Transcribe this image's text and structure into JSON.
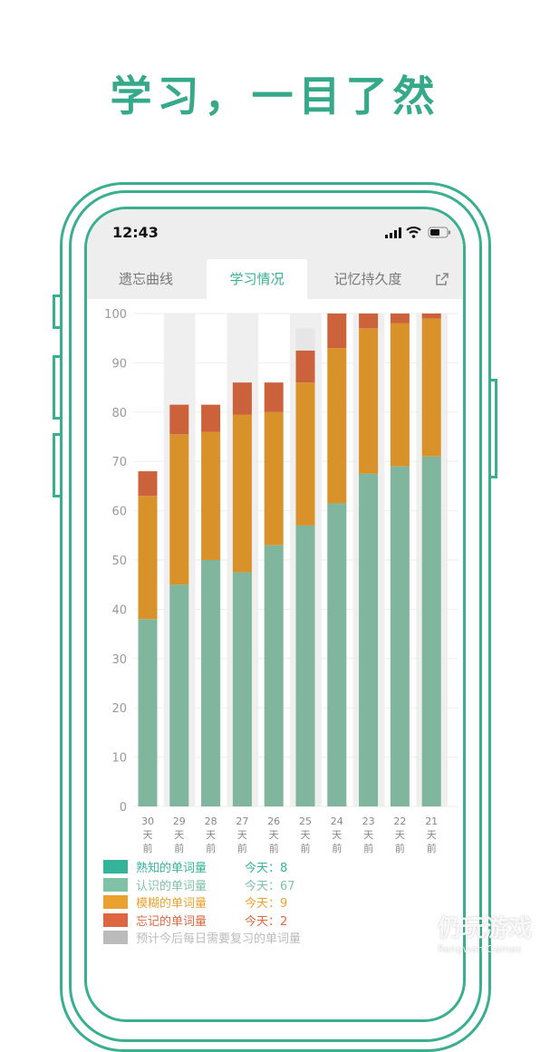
{
  "headline": "学习，一目了然",
  "status_bar": {
    "time": "12:43"
  },
  "tabs": [
    {
      "label": "遗忘曲线"
    },
    {
      "label": "学习情况",
      "active": true
    },
    {
      "label": "记忆持久度"
    }
  ],
  "share_icon": "share-icon",
  "chart_data": {
    "type": "bar",
    "stacked": true,
    "categories": [
      "30\n天\n前",
      "29\n天\n前",
      "28\n天\n前",
      "27\n天\n前",
      "26\n天\n前",
      "25\n天\n前",
      "24\n天\n前",
      "23\n天\n前",
      "22\n天\n前",
      "21\n天\n前"
    ],
    "category_labels": [
      [
        "30",
        "天",
        "前"
      ],
      [
        "29",
        "天",
        "前"
      ],
      [
        "28",
        "天",
        "前"
      ],
      [
        "27",
        "天",
        "前"
      ],
      [
        "26",
        "天",
        "前"
      ],
      [
        "25",
        "天",
        "前"
      ],
      [
        "24",
        "天",
        "前"
      ],
      [
        "23",
        "天",
        "前"
      ],
      [
        "22",
        "天",
        "前"
      ],
      [
        "21",
        "天",
        "前"
      ]
    ],
    "ylim": [
      0,
      100
    ],
    "yticks": [
      0,
      10,
      20,
      30,
      40,
      50,
      60,
      70,
      80,
      90,
      100
    ],
    "grid": true,
    "series": [
      {
        "name": "认识的单词量",
        "color": "#80b59e",
        "values": [
          38,
          45,
          50,
          47.5,
          53,
          57,
          61.5,
          67.5,
          69,
          71
        ]
      },
      {
        "name": "模糊的单词量",
        "color": "#d9922a",
        "values": [
          25,
          30.5,
          26,
          32,
          27,
          29,
          31.5,
          29.5,
          29,
          28
        ]
      },
      {
        "name": "忘记的单词量",
        "color": "#cc623c",
        "values": [
          5,
          6,
          5.5,
          6.5,
          6,
          6.5,
          7,
          3,
          2,
          1
        ]
      },
      {
        "name": "预计今后每日需要复习的单词量",
        "color": "#e6e6e6",
        "values": [
          0,
          0,
          0,
          0,
          0,
          4.5,
          0,
          0,
          0,
          0
        ]
      }
    ],
    "legend_placement": "bottom"
  },
  "legend": [
    {
      "label": "熟知的单词量",
      "today": "今天：8",
      "color": "#35b39b"
    },
    {
      "label": "认识的单词量",
      "today": "今天：67",
      "color": "#80c2a8"
    },
    {
      "label": "模糊的单词量",
      "today": "今天：9",
      "color": "#eba12e"
    },
    {
      "label": "忘记的单词量",
      "today": "今天：2",
      "color": "#dc6740"
    },
    {
      "label": "预计今后每日需要复习的单词量",
      "today": "",
      "color": "#bbbbbb"
    }
  ],
  "watermark": {
    "name": "仍玩游戏",
    "sub": "Rengwan Games"
  }
}
